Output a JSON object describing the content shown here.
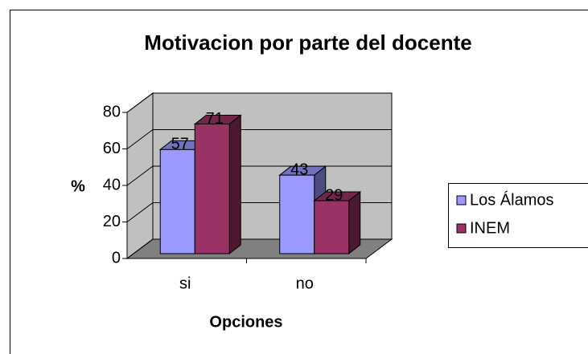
{
  "chart_data": {
    "type": "bar3d",
    "title": "Motivacion por parte del docente",
    "categories": [
      "si",
      "no"
    ],
    "series": [
      {
        "name": "Los Álamos",
        "color": "#9999ff",
        "values": [
          57,
          43
        ]
      },
      {
        "name": "INEM",
        "color": "#993366",
        "values": [
          71,
          29
        ]
      }
    ],
    "ylabel": "%",
    "xlabel": "Opciones",
    "ylim": [
      0,
      80
    ],
    "yticks": [
      0,
      20,
      40,
      60,
      80
    ],
    "grid": true,
    "legend": "right"
  }
}
